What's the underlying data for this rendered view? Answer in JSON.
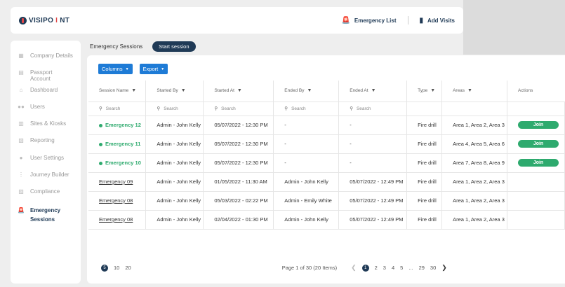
{
  "app": {
    "logo_visi": "VISIPO",
    "logo_i": "I",
    "logo_nt": "NT"
  },
  "header": {
    "emergency_list": "Emergency List",
    "add_visits": "Add Visits"
  },
  "sidebar": {
    "items": [
      {
        "label": "Company Details",
        "icon": "building-icon"
      },
      {
        "label": "Passport Account",
        "icon": "document-icon"
      },
      {
        "label": "Dashboard",
        "icon": "home-icon"
      },
      {
        "label": "Users",
        "icon": "users-icon"
      },
      {
        "label": "Sites & Kiosks",
        "icon": "sites-icon"
      },
      {
        "label": "Reporting",
        "icon": "report-icon"
      },
      {
        "label": "User Settings",
        "icon": "user-icon"
      },
      {
        "label": "Journey Builder",
        "icon": "flow-icon"
      },
      {
        "label": "Compliance",
        "icon": "compliance-icon"
      }
    ],
    "active": {
      "label_line1": "Emergency",
      "label_line2": "Sessions"
    }
  },
  "tabs": {
    "current": "Emergency Sessions",
    "start": "Start session"
  },
  "toolbar": {
    "columns": "Columns",
    "export": "Export"
  },
  "table": {
    "headers": [
      "Session Name",
      "Started By",
      "Started At",
      "Ended By",
      "Ended At",
      "Type",
      "Areas",
      "Actions"
    ],
    "search_placeholder": "Search",
    "rows": [
      {
        "name": "Emergency 12",
        "started_by": "Admin - John Kelly",
        "started_at": "05/07/2022 - 12:30 PM",
        "ended_by": "-",
        "ended_at": "-",
        "type": "Fire drill",
        "areas": "Area 1, Area 2, Area 3",
        "action": "Join",
        "live": true
      },
      {
        "name": "Emergency 11",
        "started_by": "Admin - John Kelly",
        "started_at": "05/07/2022 - 12:30 PM",
        "ended_by": "-",
        "ended_at": "-",
        "type": "Fire drill",
        "areas": "Area 4, Area 5, Area 6",
        "action": "Join",
        "live": true
      },
      {
        "name": "Emergency 10",
        "started_by": "Admin - John Kelly",
        "started_at": "05/07/2022 - 12:30 PM",
        "ended_by": "-",
        "ended_at": "-",
        "type": "Fire drill",
        "areas": "Area 7, Area 8, Area 9",
        "action": "Join",
        "live": true
      },
      {
        "name": "Emergency 09",
        "started_by": "Admin - John Kelly",
        "started_at": "01/05/2022 - 11:30 AM",
        "ended_by": "Admin - John Kelly",
        "ended_at": "05/07/2022 - 12:49 PM",
        "type": "Fire drill",
        "areas": "Area 1, Area 2, Area 3",
        "action": "",
        "live": false
      },
      {
        "name": "Emergency 08",
        "started_by": "Admin - John Kelly",
        "started_at": "05/03/2022 - 02:22 PM",
        "ended_by": "Admin - Emily White",
        "ended_at": "05/07/2022 - 12:49 PM",
        "type": "Fire drill",
        "areas": "Area 1, Area 2, Area 3",
        "action": "",
        "live": false
      },
      {
        "name": "Emergency 08",
        "started_by": "Admin - John Kelly",
        "started_at": "02/04/2022 - 01:30 PM",
        "ended_by": "Admin - John Kelly",
        "ended_at": "05/07/2022 - 12:49 PM",
        "type": "Fire drill",
        "areas": "Area 1, Area 2, Area 3",
        "action": "",
        "live": false
      }
    ]
  },
  "pagination": {
    "sizes": [
      "5",
      "10",
      "20"
    ],
    "info": "Page 1 of 30 (20 Items)",
    "pages": [
      "1",
      "2",
      "3",
      "4",
      "5",
      "...",
      "29",
      "30"
    ]
  },
  "colors": {
    "navy": "#1f3a56",
    "accent_blue": "#1e7bd6",
    "live_green": "#2eaa6e",
    "logo_red": "#e04848"
  }
}
